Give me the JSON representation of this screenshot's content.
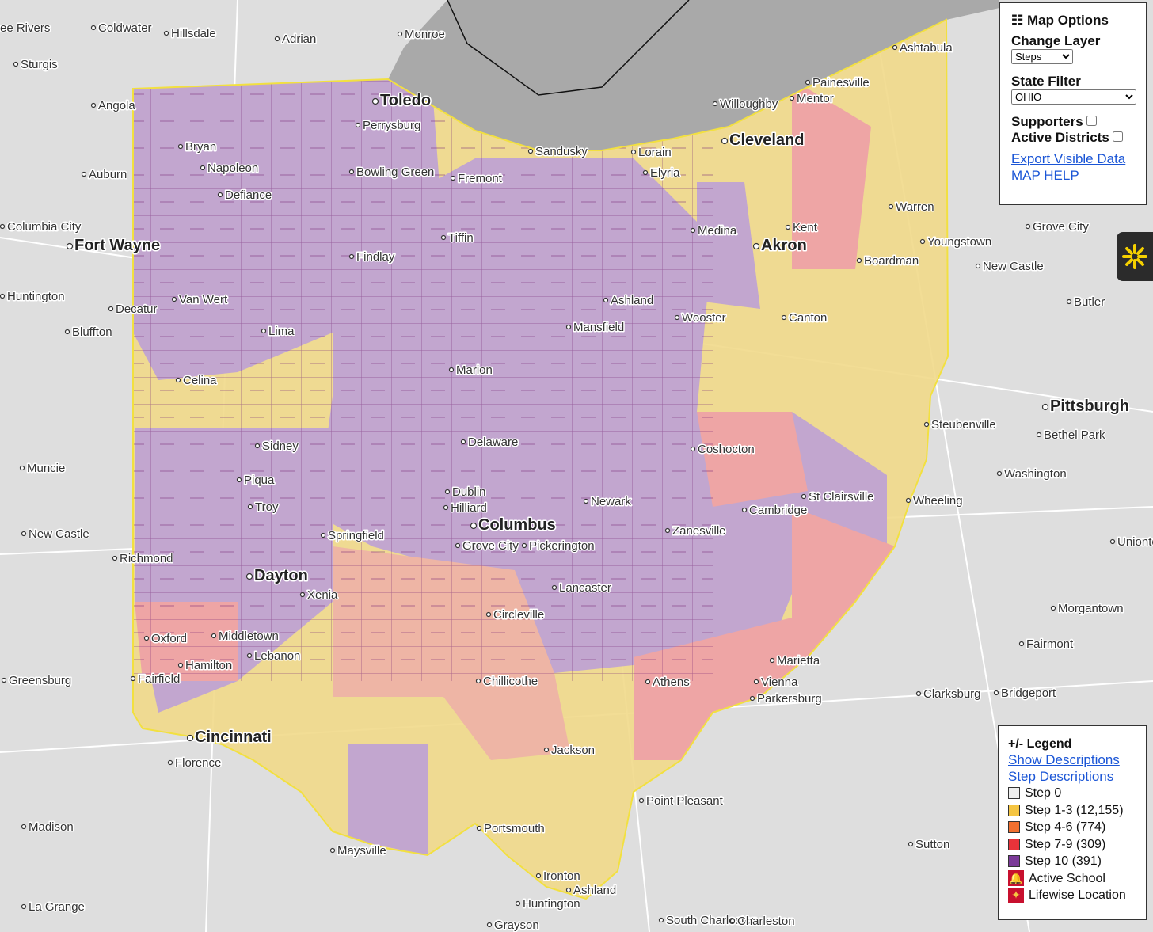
{
  "map_options": {
    "title": "Map Options",
    "change_layer": {
      "label": "Change Layer",
      "selected": "Steps"
    },
    "state_filter": {
      "label": "State Filter",
      "selected": "OHIO"
    },
    "toggles": [
      "Supporters",
      "Active Districts"
    ],
    "links": [
      "Export Visible Data",
      "MAP HELP"
    ]
  },
  "legend": {
    "title": "+/- Legend",
    "links": [
      "Show Descriptions",
      "Step Descriptions"
    ],
    "items": [
      {
        "label": "Step 0",
        "color": "#eeeeee"
      },
      {
        "label": "Step 1-3 (12,155)",
        "color": "#f5c542"
      },
      {
        "label": "Step 4-6 (774)",
        "color": "#f07030"
      },
      {
        "label": "Step 7-9 (309)",
        "color": "#e8333a"
      },
      {
        "label": "Step 10 (391)",
        "color": "#7b3a98"
      },
      {
        "label": "Active School",
        "color": "#c8102e"
      },
      {
        "label": "Lifewise Location",
        "color": "#c8102e"
      }
    ]
  },
  "map": {
    "places": [
      "ee Rivers",
      "Coldwater",
      "Hillsdale",
      "Adrian",
      "Monroe",
      "Sturgis",
      "Angola",
      "Toledo",
      "Perrysburg",
      "Bryan",
      "Napoleon",
      "Defiance",
      "Bowling Green",
      "Auburn",
      "Fremont",
      "Sandusky",
      "Willoughby",
      "Mentor",
      "Painesville",
      "Ashtabula",
      "Cleveland",
      "Lorain",
      "Elyria",
      "Columbia City",
      "Fort Wayne",
      "Tiffin",
      "Findlay",
      "Medina",
      "Akron",
      "Kent",
      "Warren",
      "Youngstown",
      "Grove City",
      "Boardman",
      "New Castle",
      "Huntington",
      "Van Wert",
      "Decatur",
      "Ashland",
      "Wooster",
      "Canton",
      "Butler",
      "Bluffton",
      "Lima",
      "Mansfield",
      "Marion",
      "Celina",
      "Pittsburgh",
      "Steubenville",
      "Bethel Park",
      "Delaware",
      "Sidney",
      "Coshocton",
      "Muncie",
      "Washington",
      "Piqua",
      "Dublin",
      "St Clairsville",
      "Wheeling",
      "Newark",
      "Troy",
      "Hilliard",
      "Cambridge",
      "Columbus",
      "Zanesville",
      "Springfield",
      "New Castle",
      "Grove City",
      "Pickerington",
      "Richmond",
      "Uniontown",
      "Dayton",
      "Xenia",
      "Lancaster",
      "Morgantown",
      "Circleville",
      "Middletown",
      "Oxford",
      "Fairmont",
      "Lebanon",
      "Marietta",
      "Hamilton",
      "Greensburg",
      "Chillicothe",
      "Athens",
      "Vienna",
      "Fairfield",
      "Parkersburg",
      "Clarksburg",
      "Bridgeport",
      "Cincinnati",
      "Jackson",
      "Florence",
      "Point Pleasant",
      "Madison",
      "Portsmouth",
      "Sutton",
      "Maysville",
      "Ironton",
      "Ashland",
      "Huntington",
      "La Grange",
      "South Charleston",
      "Charleston",
      "Grayson"
    ]
  }
}
